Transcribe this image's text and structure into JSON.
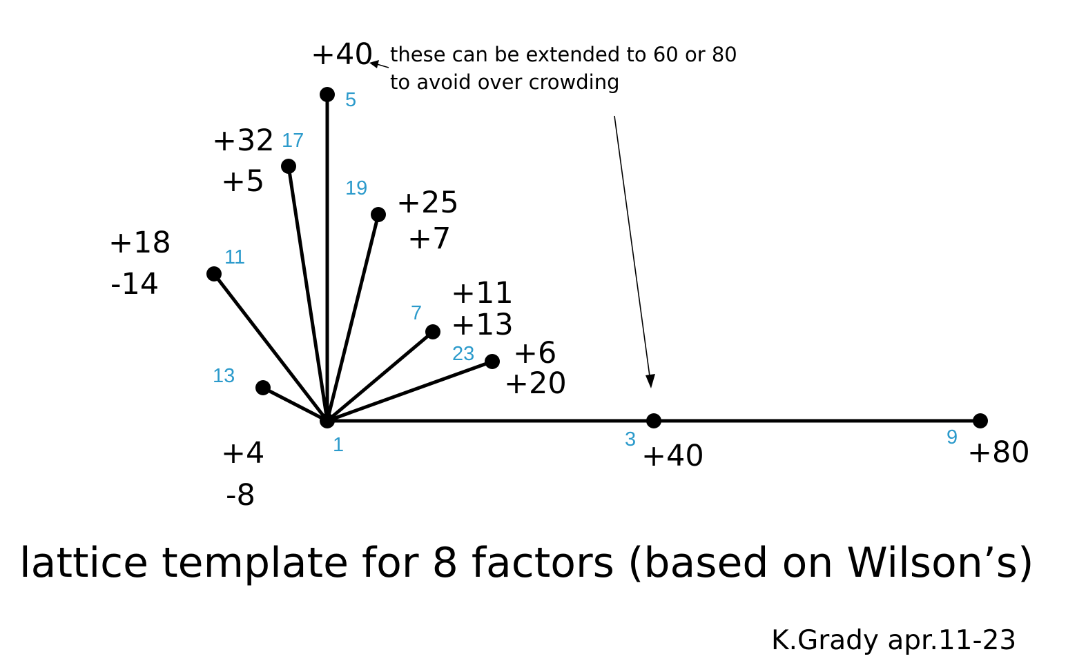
{
  "diagram": {
    "title": "lattice template for 8 factors (based on Wilson’s)",
    "credit": "K.Grady apr.11-23",
    "note_line1": "these can be extended to 60 or 80",
    "note_line2": "to avoid over crowding",
    "top_value": "+40",
    "origin_label": "1",
    "nodes": [
      {
        "id": "3",
        "label": "3",
        "coord_a": "+40",
        "coord_b": ""
      },
      {
        "id": "9",
        "label": "9",
        "coord_a": "+80",
        "coord_b": ""
      },
      {
        "id": "5",
        "label": "5",
        "coord_a": "",
        "coord_b": ""
      },
      {
        "id": "17",
        "label": "17",
        "coord_a": "+32",
        "coord_b": "+5"
      },
      {
        "id": "19",
        "label": "19",
        "coord_a": "+25",
        "coord_b": "+7"
      },
      {
        "id": "11",
        "label": "11",
        "coord_a": "+18",
        "coord_b": "-14"
      },
      {
        "id": "7",
        "label": "7",
        "coord_a": "+11",
        "coord_b": "+13"
      },
      {
        "id": "23",
        "label": "23",
        "coord_a": "+6",
        "coord_b": "+20"
      },
      {
        "id": "13",
        "label": "13",
        "coord_a": "+4",
        "coord_b": "-8"
      }
    ],
    "edges": [
      [
        "1",
        "3"
      ],
      [
        "3",
        "9"
      ],
      [
        "1",
        "5"
      ],
      [
        "1",
        "17"
      ],
      [
        "1",
        "19"
      ],
      [
        "1",
        "11"
      ],
      [
        "1",
        "7"
      ],
      [
        "1",
        "23"
      ],
      [
        "1",
        "13"
      ]
    ],
    "colors": {
      "line": "#000000",
      "node_number": "#2b9acb",
      "text": "#000000",
      "background": "#ffffff"
    }
  }
}
